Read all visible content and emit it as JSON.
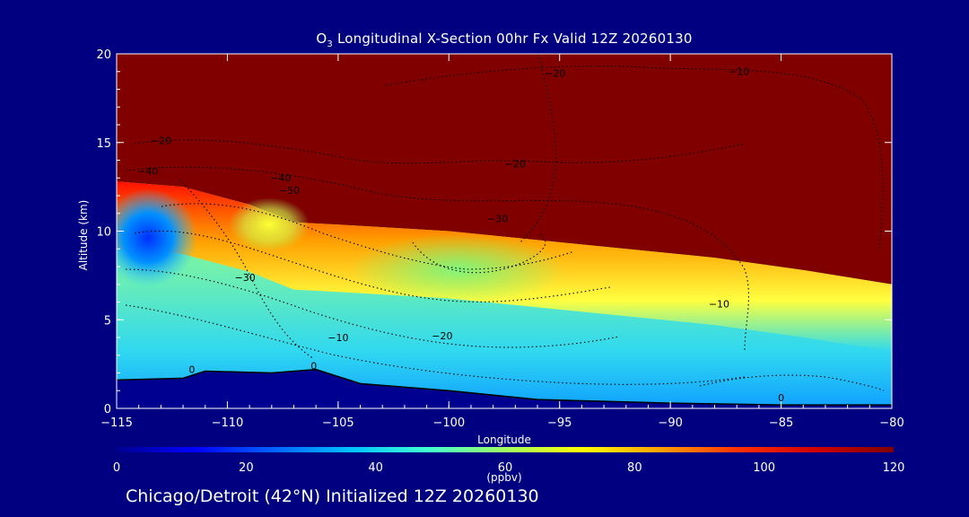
{
  "chart_data": {
    "type": "heatmap",
    "title_prefix": "O",
    "title_sub": "3",
    "title_rest": " Longitudinal X-Section 00hr  Fx Valid 12Z 20260130",
    "xlabel": "Longitude",
    "ylabel": "Altitude (km)",
    "xlim": [
      -115,
      -80
    ],
    "ylim": [
      0,
      20
    ],
    "x_ticks": [
      -115,
      -110,
      -105,
      -100,
      -95,
      -90,
      -85,
      -80
    ],
    "x_tick_labels": [
      "−115",
      "−110",
      "−105",
      "−100",
      "−95",
      "−90",
      "−85",
      "−80"
    ],
    "y_ticks": [
      0,
      5,
      10,
      15,
      20
    ],
    "y_tick_labels": [
      "0",
      "5",
      "10",
      "15",
      "20"
    ],
    "colorbar": {
      "label": "(ppbv)",
      "min": 0,
      "max": 120,
      "ticks": [
        0,
        20,
        40,
        60,
        80,
        100,
        120
      ],
      "tick_labels": [
        "0",
        "20",
        "40",
        "60",
        "80",
        "100",
        "120"
      ],
      "colors": [
        "#000090",
        "#0000ff",
        "#0060ff",
        "#00c0ff",
        "#40ffd0",
        "#a0ff60",
        "#ffff00",
        "#ffa000",
        "#ff3000",
        "#d00000",
        "#800000"
      ]
    },
    "tropopause_height_km": [
      {
        "lon": -115,
        "km": 12.8
      },
      {
        "lon": -112,
        "km": 12.5
      },
      {
        "lon": -109,
        "km": 11.5
      },
      {
        "lon": -107,
        "km": 10.5
      },
      {
        "lon": -104,
        "km": 10.3
      },
      {
        "lon": -100,
        "km": 10.0
      },
      {
        "lon": -96,
        "km": 9.5
      },
      {
        "lon": -92,
        "km": 9.0
      },
      {
        "lon": -88,
        "km": 8.5
      },
      {
        "lon": -84,
        "km": 7.8
      },
      {
        "lon": -80,
        "km": 7.0
      }
    ],
    "surface_height_km": [
      {
        "lon": -115,
        "km": 1.6
      },
      {
        "lon": -112,
        "km": 1.7
      },
      {
        "lon": -111,
        "km": 2.1
      },
      {
        "lon": -108,
        "km": 2.0
      },
      {
        "lon": -106,
        "km": 2.2
      },
      {
        "lon": -104,
        "km": 1.4
      },
      {
        "lon": -100,
        "km": 1.0
      },
      {
        "lon": -96,
        "km": 0.5
      },
      {
        "lon": -90,
        "km": 0.3
      },
      {
        "lon": -85,
        "km": 0.2
      },
      {
        "lon": -80,
        "km": 0.2
      }
    ],
    "contour_labels": [
      {
        "text": "−20",
        "lon": -113,
        "km": 14.9
      },
      {
        "text": "−40",
        "lon": -113.6,
        "km": 13.2
      },
      {
        "text": "−40",
        "lon": -107.6,
        "km": 12.8
      },
      {
        "text": "−50",
        "lon": -107.2,
        "km": 12.1
      },
      {
        "text": "−30",
        "lon": -109.2,
        "km": 7.2
      },
      {
        "text": "−10",
        "lon": -105,
        "km": 3.8
      },
      {
        "text": "0",
        "lon": -111.6,
        "km": 2.0
      },
      {
        "text": "0",
        "lon": -106.1,
        "km": 2.2
      },
      {
        "text": "−20",
        "lon": -100.3,
        "km": 3.9
      },
      {
        "text": "−20",
        "lon": -97,
        "km": 13.6
      },
      {
        "text": "−30",
        "lon": -97.8,
        "km": 10.5
      },
      {
        "text": "−20",
        "lon": -95.2,
        "km": 18.7
      },
      {
        "text": "−10",
        "lon": -86.9,
        "km": 18.8
      },
      {
        "text": "−10",
        "lon": -87.8,
        "km": 5.7
      },
      {
        "text": "0",
        "lon": -85,
        "km": 0.4
      }
    ]
  },
  "footer": "Chicago/Detroit (42°N) Initialized 12Z 20260130"
}
